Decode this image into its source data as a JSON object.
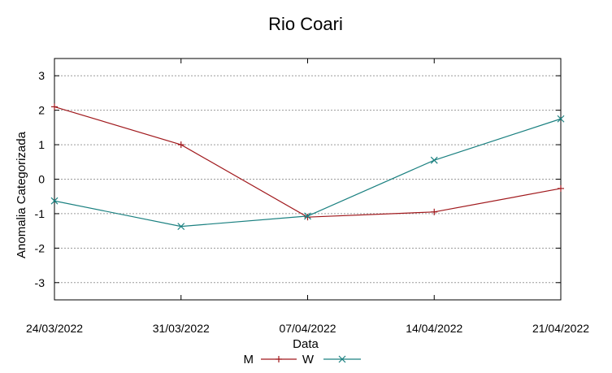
{
  "chart_data": {
    "type": "line",
    "title": "Rio Coari",
    "xlabel": "Data",
    "ylabel": "Anomalia Categorizada",
    "categories": [
      "24/03/2022",
      "31/03/2022",
      "07/04/2022",
      "14/04/2022",
      "21/04/2022"
    ],
    "yticks": [
      3,
      2,
      1,
      0,
      -1,
      -2,
      -3
    ],
    "ytick_labels": [
      "3",
      "2",
      "1",
      "0",
      "-1",
      "-2",
      "-3"
    ],
    "ylim": [
      -3.5,
      3.5
    ],
    "grid": true,
    "legend_position": "bottom-center",
    "series": [
      {
        "name": "M",
        "color": "#a0181c",
        "marker": "plus",
        "values": [
          2.1,
          1.0,
          -1.1,
          -0.95,
          -0.27
        ]
      },
      {
        "name": "W",
        "color": "#1a8080",
        "marker": "x",
        "values": [
          -0.63,
          -1.37,
          -1.07,
          0.55,
          1.75
        ]
      }
    ]
  }
}
